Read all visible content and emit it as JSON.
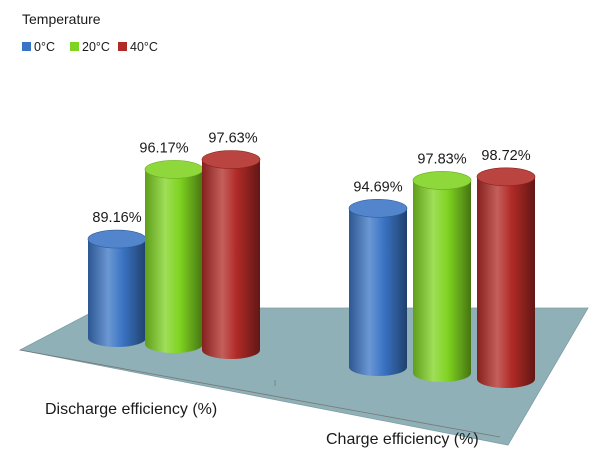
{
  "chart_data": {
    "type": "bar",
    "style": "3d-cylinder",
    "categories": [
      "Discharge efficiency (%)",
      "Charge efficiency (%)"
    ],
    "legend": {
      "title": "Temperature",
      "placement": "top-left"
    },
    "series": [
      {
        "name": "0°C",
        "values": [
          89.16,
          94.69
        ],
        "labels": [
          "89.16%",
          "94.69%"
        ],
        "color": "#3a74c4"
      },
      {
        "name": "20°C",
        "values": [
          96.17,
          97.83
        ],
        "labels": [
          "96.17%",
          "97.83%"
        ],
        "color": "#7fd321"
      },
      {
        "name": "40°C",
        "values": [
          97.63,
          98.72
        ],
        "labels": [
          "97.63%",
          "98.72%"
        ],
        "color": "#b02a26"
      }
    ],
    "ylim": [
      80,
      100
    ],
    "grid": false,
    "floor_color": "#8fb0b6"
  }
}
